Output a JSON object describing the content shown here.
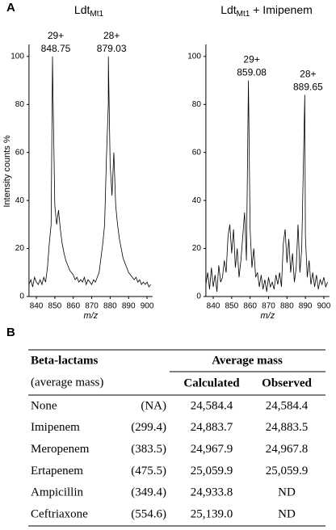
{
  "panel_labels": [
    "A",
    "B"
  ],
  "chart_data": [
    {
      "type": "line",
      "title": {
        "main": "Ldt",
        "sub": "Mt1"
      },
      "x_label": "m/z",
      "y_label": "Intensity counts %",
      "xlim": [
        836,
        903
      ],
      "ylim": [
        0,
        105
      ],
      "xticks": [
        840,
        850,
        860,
        870,
        880,
        890,
        900
      ],
      "yticks": [
        0,
        20,
        40,
        60,
        80,
        100
      ],
      "x": [
        836,
        837,
        838,
        839,
        840,
        841,
        842,
        843,
        844,
        845,
        846,
        847,
        848,
        848.75,
        849,
        850,
        851,
        852,
        853,
        854,
        855,
        856,
        857,
        858,
        859,
        860,
        861,
        862,
        863,
        864,
        865,
        866,
        867,
        868,
        869,
        870,
        871,
        872,
        873,
        874,
        875,
        876,
        877,
        878,
        879,
        879.03,
        880,
        881,
        882,
        883,
        884,
        885,
        886,
        887,
        888,
        889,
        890,
        891,
        892,
        893,
        894,
        895,
        896,
        897,
        898,
        899,
        900,
        901,
        902
      ],
      "series": [
        {
          "color": "#000000",
          "values": [
            5,
            7,
            4,
            8,
            6,
            5,
            7,
            5,
            8,
            6,
            12,
            22,
            30,
            100,
            85,
            38,
            30,
            36,
            28,
            22,
            18,
            15,
            13,
            11,
            10,
            9,
            7,
            8,
            6,
            7,
            6,
            8,
            5,
            7,
            6,
            5,
            7,
            6,
            8,
            10,
            16,
            22,
            30,
            58,
            80,
            100,
            55,
            42,
            60,
            38,
            30,
            24,
            20,
            16,
            14,
            12,
            10,
            9,
            8,
            7,
            8,
            6,
            7,
            5,
            6,
            5,
            6,
            4,
            5
          ]
        }
      ],
      "annotations": [
        {
          "text": "29+",
          "x": 848.75
        },
        {
          "text": "28+",
          "x": 879.03
        }
      ]
    },
    {
      "type": "line",
      "title": {
        "main": "Ldt",
        "sub": "Mt1",
        "suffix": " + Imipenem"
      },
      "x_label": "m/z",
      "xlim": [
        836,
        903
      ],
      "ylim": [
        0,
        105
      ],
      "xticks": [
        840,
        850,
        860,
        870,
        880,
        890,
        900
      ],
      "yticks": [
        0,
        20,
        40,
        60,
        80,
        100
      ],
      "x": [
        836,
        837,
        838,
        839,
        840,
        841,
        842,
        843,
        844,
        845,
        846,
        847,
        848,
        849,
        850,
        851,
        852,
        853,
        854,
        855,
        856,
        857,
        858,
        859.08,
        860,
        861,
        862,
        863,
        864,
        865,
        866,
        867,
        868,
        869,
        870,
        871,
        872,
        873,
        874,
        875,
        876,
        877,
        878,
        879,
        880,
        881,
        882,
        883,
        884,
        885,
        886,
        887,
        888,
        889.65,
        890,
        891,
        892,
        893,
        894,
        895,
        896,
        897,
        898,
        899,
        900,
        901,
        902
      ],
      "series": [
        {
          "color": "#000000",
          "values": [
            5,
            10,
            3,
            12,
            4,
            9,
            2,
            13,
            6,
            8,
            15,
            10,
            25,
            30,
            18,
            28,
            12,
            20,
            8,
            15,
            25,
            35,
            15,
            90,
            28,
            12,
            20,
            8,
            10,
            4,
            9,
            3,
            7,
            2,
            8,
            4,
            6,
            3,
            9,
            5,
            10,
            4,
            22,
            28,
            14,
            24,
            10,
            18,
            6,
            12,
            30,
            10,
            20,
            84,
            25,
            8,
            15,
            5,
            10,
            4,
            9,
            3,
            7,
            5,
            8,
            4,
            6
          ]
        }
      ],
      "annotations": [
        {
          "text": "29+",
          "x": 859.08
        },
        {
          "text": "28+",
          "x": 889.65
        }
      ]
    }
  ],
  "table": {
    "header": {
      "col1": "Beta-lactams",
      "col1_sub": "(average mass)",
      "group": "Average mass",
      "calc": "Calculated",
      "obs": "Observed"
    },
    "rows": [
      [
        "None",
        "(NA)",
        "24,584.4",
        "24,584.4"
      ],
      [
        "Imipenem",
        "(299.4)",
        "24,883.7",
        "24,883.5"
      ],
      [
        "Meropenem",
        "(383.5)",
        "24,967.9",
        "24,967.8"
      ],
      [
        "Ertapenem",
        "(475.5)",
        "25,059.9",
        "25,059.9"
      ],
      [
        "Ampicillin",
        "(349.4)",
        "24,933.8",
        "ND"
      ],
      [
        "Ceftriaxone",
        "(554.6)",
        "25,139.0",
        "ND"
      ]
    ]
  }
}
